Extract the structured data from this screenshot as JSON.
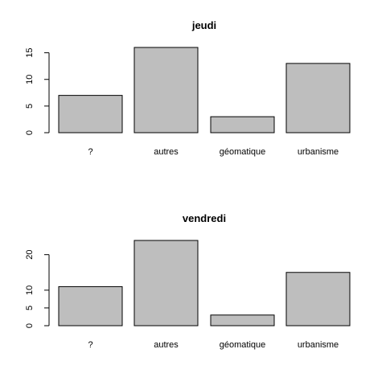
{
  "bar_color": "#bebebe",
  "chart_data": [
    {
      "type": "bar",
      "title": "jeudi",
      "categories": [
        "?",
        "autres",
        "géomatique",
        "urbanisme"
      ],
      "values": [
        7,
        16,
        3,
        13
      ],
      "yticks": [
        0,
        5,
        10,
        15
      ],
      "ytick_labels": [
        "0",
        "5",
        "10",
        "15"
      ],
      "ylim": [
        0,
        16
      ],
      "xlabel": "",
      "ylabel": "",
      "grid": false
    },
    {
      "type": "bar",
      "title": "vendredi",
      "categories": [
        "?",
        "autres",
        "géomatique",
        "urbanisme"
      ],
      "values": [
        11,
        24,
        3,
        15
      ],
      "yticks": [
        0,
        5,
        10,
        20
      ],
      "ytick_labels": [
        "0",
        "5",
        "10",
        "20"
      ],
      "ylim": [
        0,
        24
      ],
      "xlabel": "",
      "ylabel": "",
      "grid": false
    }
  ]
}
